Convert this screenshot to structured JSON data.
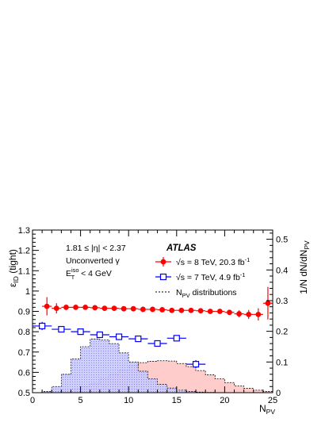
{
  "chart_data": {
    "type": "scatter",
    "experiment_label": "ATLAS",
    "annotations": [
      "1.81 ≤ |η| < 2.37",
      "Unconverted γ"
    ],
    "annotation_iso": {
      "main": "E",
      "sup": "iso",
      "sub": "T",
      "rest": " < 4 GeV"
    },
    "xlabel": {
      "main": "N",
      "sub": "PV"
    },
    "ylabel_left": {
      "main": "ε",
      "sub": "ID",
      "rest": " (tight)"
    },
    "ylabel_right": {
      "main": "1/N dN/dN",
      "sub": "PV"
    },
    "xlim": [
      0,
      25
    ],
    "ylim_left": [
      0.5,
      1.3
    ],
    "ylim_right": [
      0,
      0.53
    ],
    "x_ticks": [
      0,
      5,
      10,
      15,
      20,
      25
    ],
    "y_left_ticks": [
      0.5,
      0.6,
      0.7,
      0.8,
      0.9,
      1.0,
      1.1,
      1.2,
      1.3
    ],
    "y_left_tick_labels": [
      "0.5",
      "0.6",
      "0.7",
      "0.8",
      "0.9",
      "1",
      "1.1",
      "1.2",
      "1.3"
    ],
    "y_right_ticks": [
      0,
      0.1,
      0.2,
      0.3,
      0.4,
      0.5
    ],
    "y_right_tick_labels": [
      "0",
      "0.1",
      "0.2",
      "0.3",
      "0.4",
      "0.5"
    ],
    "legend": {
      "placement": "top-right",
      "entries": [
        {
          "prefix": "√s = 8 TeV, 20.3 fb",
          "sup": "-1"
        },
        {
          "prefix": "√s = 7 TeV, 4.9 fb",
          "sup": "-1"
        },
        {
          "prefix": "N",
          "sub": "PV",
          "rest": " distributions"
        }
      ]
    },
    "colors": {
      "eff_8tev": "#ff0000",
      "eff_7tev": "#0000ff",
      "npv_8tev_fill": "#ffcccc",
      "npv_7tev_fill": "#ccccff",
      "npv_7tev_dots": "#6666ff"
    },
    "series": [
      {
        "key": "eff_8tev",
        "marker": "filled-circle",
        "points": [
          {
            "x": 1.5,
            "y": 0.925,
            "err": 0.045
          },
          {
            "x": 2.5,
            "y": 0.915,
            "err": 0.025
          },
          {
            "x": 3.5,
            "y": 0.92,
            "err": 0.013
          },
          {
            "x": 4.5,
            "y": 0.92,
            "err": 0.008
          },
          {
            "x": 5.5,
            "y": 0.92,
            "err": 0.006
          },
          {
            "x": 6.5,
            "y": 0.918,
            "err": 0.005
          },
          {
            "x": 7.5,
            "y": 0.915,
            "err": 0.005
          },
          {
            "x": 8.5,
            "y": 0.915,
            "err": 0.004
          },
          {
            "x": 9.5,
            "y": 0.913,
            "err": 0.004
          },
          {
            "x": 10.5,
            "y": 0.913,
            "err": 0.004
          },
          {
            "x": 11.5,
            "y": 0.91,
            "err": 0.004
          },
          {
            "x": 12.5,
            "y": 0.91,
            "err": 0.004
          },
          {
            "x": 13.5,
            "y": 0.908,
            "err": 0.004
          },
          {
            "x": 14.5,
            "y": 0.905,
            "err": 0.004
          },
          {
            "x": 15.5,
            "y": 0.905,
            "err": 0.005
          },
          {
            "x": 16.5,
            "y": 0.905,
            "err": 0.005
          },
          {
            "x": 17.5,
            "y": 0.903,
            "err": 0.006
          },
          {
            "x": 18.5,
            "y": 0.9,
            "err": 0.008
          },
          {
            "x": 19.5,
            "y": 0.9,
            "err": 0.01
          },
          {
            "x": 20.5,
            "y": 0.895,
            "err": 0.013
          },
          {
            "x": 21.5,
            "y": 0.888,
            "err": 0.017
          },
          {
            "x": 22.5,
            "y": 0.885,
            "err": 0.022
          },
          {
            "x": 23.5,
            "y": 0.885,
            "err": 0.03
          },
          {
            "x": 24.5,
            "y": 0.94,
            "err": 0.08
          }
        ]
      },
      {
        "key": "eff_7tev",
        "marker": "open-square",
        "points": [
          {
            "x": 1,
            "y": 0.828,
            "err": 0.02,
            "xerr": 1
          },
          {
            "x": 3,
            "y": 0.812,
            "err": 0.015,
            "xerr": 1
          },
          {
            "x": 5,
            "y": 0.8,
            "err": 0.012,
            "xerr": 1
          },
          {
            "x": 7,
            "y": 0.785,
            "err": 0.01,
            "xerr": 1
          },
          {
            "x": 9,
            "y": 0.775,
            "err": 0.01,
            "xerr": 1
          },
          {
            "x": 11,
            "y": 0.765,
            "err": 0.01,
            "xerr": 1
          },
          {
            "x": 13,
            "y": 0.742,
            "err": 0.01,
            "xerr": 1
          },
          {
            "x": 15,
            "y": 0.768,
            "err": 0.015,
            "xerr": 1
          },
          {
            "x": 17,
            "y": 0.64,
            "err": 0.02,
            "xerr": 1
          }
        ]
      }
    ],
    "histograms": [
      {
        "key": "npv_8tev",
        "axis": "right",
        "bin_edges": [
          1,
          2,
          3,
          4,
          5,
          6,
          7,
          8,
          9,
          10,
          11,
          12,
          13,
          14,
          15,
          16,
          17,
          18,
          19,
          20,
          21,
          22,
          23,
          24,
          25
        ],
        "values": [
          0.002,
          0.004,
          0.008,
          0.013,
          0.02,
          0.03,
          0.045,
          0.06,
          0.074,
          0.088,
          0.098,
          0.102,
          0.104,
          0.103,
          0.095,
          0.085,
          0.072,
          0.058,
          0.045,
          0.033,
          0.022,
          0.014,
          0.008,
          0.004
        ]
      },
      {
        "key": "npv_7tev",
        "axis": "right",
        "bin_edges": [
          1,
          2,
          3,
          4,
          5,
          6,
          7,
          8,
          9,
          10,
          11,
          12,
          13,
          14,
          15,
          16,
          17,
          18,
          19
        ],
        "values": [
          0.004,
          0.02,
          0.06,
          0.11,
          0.15,
          0.175,
          0.172,
          0.16,
          0.13,
          0.1,
          0.07,
          0.045,
          0.027,
          0.015,
          0.008,
          0.004,
          0.002,
          0.001
        ]
      }
    ]
  }
}
